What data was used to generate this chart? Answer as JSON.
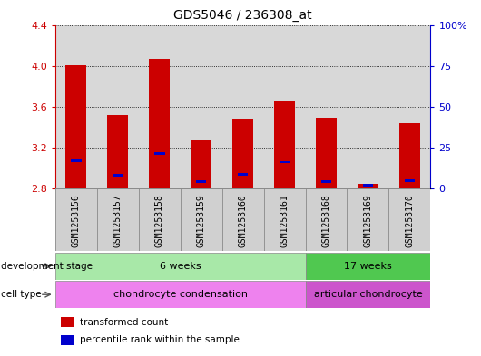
{
  "title": "GDS5046 / 236308_at",
  "samples": [
    "GSM1253156",
    "GSM1253157",
    "GSM1253158",
    "GSM1253159",
    "GSM1253160",
    "GSM1253161",
    "GSM1253168",
    "GSM1253169",
    "GSM1253170"
  ],
  "red_values": [
    4.01,
    3.52,
    4.07,
    3.28,
    3.48,
    3.65,
    3.49,
    2.85,
    3.44
  ],
  "blue_values": [
    3.07,
    2.93,
    3.14,
    2.87,
    2.94,
    3.06,
    2.87,
    2.83,
    2.88
  ],
  "ymin": 2.8,
  "ymax": 4.4,
  "yticks_left": [
    2.8,
    3.2,
    3.6,
    4.0,
    4.4
  ],
  "yticks_right": [
    0,
    25,
    50,
    75,
    100
  ],
  "ytick_labels_right": [
    "0",
    "25",
    "50",
    "75",
    "100%"
  ],
  "dev_stage_groups": [
    {
      "label": "6 weeks",
      "start": 0,
      "end": 6,
      "color": "#a8e8a8"
    },
    {
      "label": "17 weeks",
      "start": 6,
      "end": 9,
      "color": "#50c850"
    }
  ],
  "cell_type_groups": [
    {
      "label": "chondrocyte condensation",
      "start": 0,
      "end": 6,
      "color": "#ee82ee"
    },
    {
      "label": "articular chondrocyte",
      "start": 6,
      "end": 9,
      "color": "#cc55cc"
    }
  ],
  "bar_color": "#cc0000",
  "blue_marker_color": "#0000cc",
  "baseline": 2.8,
  "bar_width": 0.5,
  "left_label_color": "#cc0000",
  "right_label_color": "#0000cc",
  "legend_items": [
    {
      "label": "transformed count",
      "color": "#cc0000"
    },
    {
      "label": "percentile rank within the sample",
      "color": "#0000cc"
    }
  ],
  "dev_stage_label": "development stage",
  "cell_type_label": "cell type",
  "xtick_bg_color": "#c8c8c8",
  "col_sep_color": "#aaaaaa"
}
